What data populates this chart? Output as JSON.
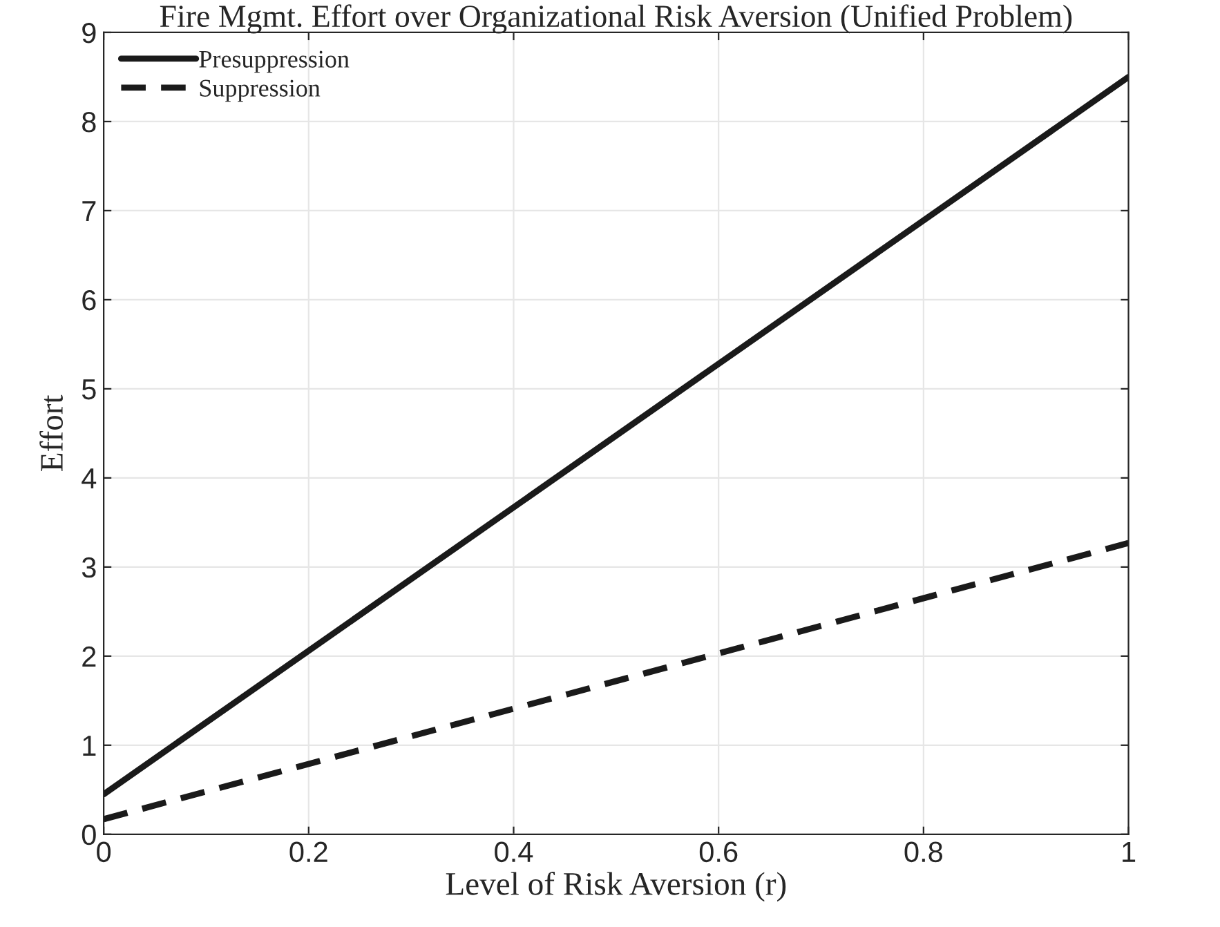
{
  "chart_data": {
    "type": "line",
    "title": "Fire Mgmt. Effort over Organizational Risk Aversion (Unified Problem)",
    "xlabel": "Level of Risk Aversion (r)",
    "ylabel": "Effort",
    "x": [
      0,
      1
    ],
    "series": [
      {
        "name": "Presuppression",
        "color": "#1a1a1a",
        "values": [
          0.45,
          8.5
        ],
        "line_style": "solid"
      },
      {
        "name": "Suppression",
        "color": "#1a1a1a",
        "values": [
          0.17,
          3.27
        ],
        "line_style": "dashed"
      }
    ],
    "xlim": [
      0,
      1
    ],
    "xticks": [
      0,
      0.2,
      0.4,
      0.6,
      0.8,
      1
    ],
    "ylim": [
      0,
      9
    ],
    "yticks": [
      0,
      1,
      2,
      3,
      4,
      5,
      6,
      7,
      8,
      9
    ],
    "grid": true,
    "legend": "top left",
    "marker": "none"
  }
}
